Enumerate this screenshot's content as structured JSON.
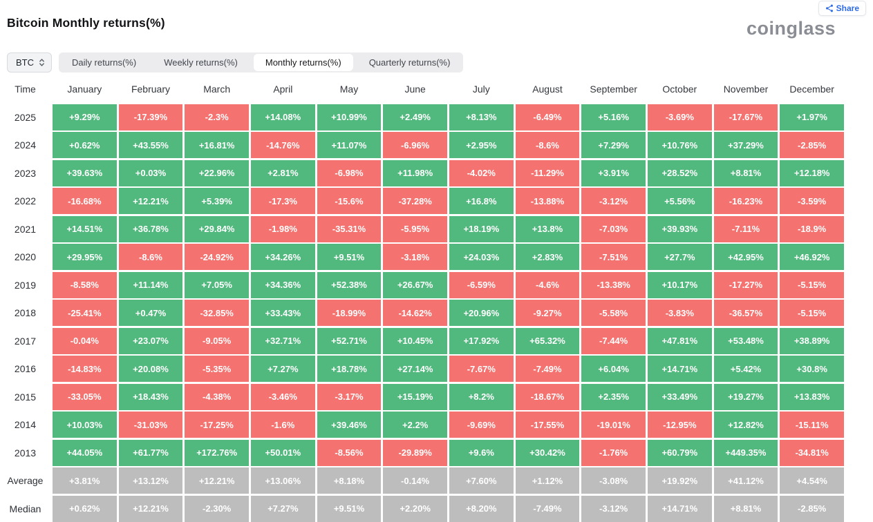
{
  "header": {
    "title": "Bitcoin Monthly returns(%)",
    "share_label": "Share",
    "logo_text": "coinglass"
  },
  "controls": {
    "symbol_select": {
      "value": "BTC",
      "icon": "chevron-up-down-icon"
    },
    "tabs": [
      {
        "label": "Daily returns(%)",
        "active": false
      },
      {
        "label": "Weekly returns(%)",
        "active": false
      },
      {
        "label": "Monthly returns(%)",
        "active": true
      },
      {
        "label": "Quarterly returns(%)",
        "active": false
      }
    ]
  },
  "colors": {
    "positive_green": "#52b97e",
    "negative_red": "#f4726f",
    "summary_gray": "#bdbdbd",
    "accent_blue": "#2e6be6"
  },
  "chart_data": {
    "type": "table",
    "title": "Bitcoin Monthly returns(%)",
    "time_column_header": "Time",
    "columns": [
      "January",
      "February",
      "March",
      "April",
      "May",
      "June",
      "July",
      "August",
      "September",
      "October",
      "November",
      "December"
    ],
    "rows": [
      {
        "label": "2025",
        "summary": false,
        "values": [
          "+9.29%",
          "-17.39%",
          "-2.3%",
          "+14.08%",
          "+10.99%",
          "+2.49%",
          "+8.13%",
          "-6.49%",
          "+5.16%",
          "-3.69%",
          "-17.67%",
          "+1.97%"
        ]
      },
      {
        "label": "2024",
        "summary": false,
        "values": [
          "+0.62%",
          "+43.55%",
          "+16.81%",
          "-14.76%",
          "+11.07%",
          "-6.96%",
          "+2.95%",
          "-8.6%",
          "+7.29%",
          "+10.76%",
          "+37.29%",
          "-2.85%"
        ]
      },
      {
        "label": "2023",
        "summary": false,
        "values": [
          "+39.63%",
          "+0.03%",
          "+22.96%",
          "+2.81%",
          "-6.98%",
          "+11.98%",
          "-4.02%",
          "-11.29%",
          "+3.91%",
          "+28.52%",
          "+8.81%",
          "+12.18%"
        ]
      },
      {
        "label": "2022",
        "summary": false,
        "values": [
          "-16.68%",
          "+12.21%",
          "+5.39%",
          "-17.3%",
          "-15.6%",
          "-37.28%",
          "+16.8%",
          "-13.88%",
          "-3.12%",
          "+5.56%",
          "-16.23%",
          "-3.59%"
        ]
      },
      {
        "label": "2021",
        "summary": false,
        "values": [
          "+14.51%",
          "+36.78%",
          "+29.84%",
          "-1.98%",
          "-35.31%",
          "-5.95%",
          "+18.19%",
          "+13.8%",
          "-7.03%",
          "+39.93%",
          "-7.11%",
          "-18.9%"
        ]
      },
      {
        "label": "2020",
        "summary": false,
        "values": [
          "+29.95%",
          "-8.6%",
          "-24.92%",
          "+34.26%",
          "+9.51%",
          "-3.18%",
          "+24.03%",
          "+2.83%",
          "-7.51%",
          "+27.7%",
          "+42.95%",
          "+46.92%"
        ]
      },
      {
        "label": "2019",
        "summary": false,
        "values": [
          "-8.58%",
          "+11.14%",
          "+7.05%",
          "+34.36%",
          "+52.38%",
          "+26.67%",
          "-6.59%",
          "-4.6%",
          "-13.38%",
          "+10.17%",
          "-17.27%",
          "-5.15%"
        ]
      },
      {
        "label": "2018",
        "summary": false,
        "values": [
          "-25.41%",
          "+0.47%",
          "-32.85%",
          "+33.43%",
          "-18.99%",
          "-14.62%",
          "+20.96%",
          "-9.27%",
          "-5.58%",
          "-3.83%",
          "-36.57%",
          "-5.15%"
        ]
      },
      {
        "label": "2017",
        "summary": false,
        "values": [
          "-0.04%",
          "+23.07%",
          "-9.05%",
          "+32.71%",
          "+52.71%",
          "+10.45%",
          "+17.92%",
          "+65.32%",
          "-7.44%",
          "+47.81%",
          "+53.48%",
          "+38.89%"
        ]
      },
      {
        "label": "2016",
        "summary": false,
        "values": [
          "-14.83%",
          "+20.08%",
          "-5.35%",
          "+7.27%",
          "+18.78%",
          "+27.14%",
          "-7.67%",
          "-7.49%",
          "+6.04%",
          "+14.71%",
          "+5.42%",
          "+30.8%"
        ]
      },
      {
        "label": "2015",
        "summary": false,
        "values": [
          "-33.05%",
          "+18.43%",
          "-4.38%",
          "-3.46%",
          "-3.17%",
          "+15.19%",
          "+8.2%",
          "-18.67%",
          "+2.35%",
          "+33.49%",
          "+19.27%",
          "+13.83%"
        ]
      },
      {
        "label": "2014",
        "summary": false,
        "values": [
          "+10.03%",
          "-31.03%",
          "-17.25%",
          "-1.6%",
          "+39.46%",
          "+2.2%",
          "-9.69%",
          "-17.55%",
          "-19.01%",
          "-12.95%",
          "+12.82%",
          "-15.11%"
        ]
      },
      {
        "label": "2013",
        "summary": false,
        "values": [
          "+44.05%",
          "+61.77%",
          "+172.76%",
          "+50.01%",
          "-8.56%",
          "-29.89%",
          "+9.6%",
          "+30.42%",
          "-1.76%",
          "+60.79%",
          "+449.35%",
          "-34.81%"
        ]
      },
      {
        "label": "Average",
        "summary": true,
        "values": [
          "+3.81%",
          "+13.12%",
          "+12.21%",
          "+13.06%",
          "+8.18%",
          "-0.14%",
          "+7.60%",
          "+1.12%",
          "-3.08%",
          "+19.92%",
          "+41.12%",
          "+4.54%"
        ]
      },
      {
        "label": "Median",
        "summary": true,
        "values": [
          "+0.62%",
          "+12.21%",
          "-2.30%",
          "+7.27%",
          "+9.51%",
          "+2.20%",
          "+8.20%",
          "-7.49%",
          "-3.12%",
          "+14.71%",
          "+8.81%",
          "-2.85%"
        ]
      }
    ]
  }
}
